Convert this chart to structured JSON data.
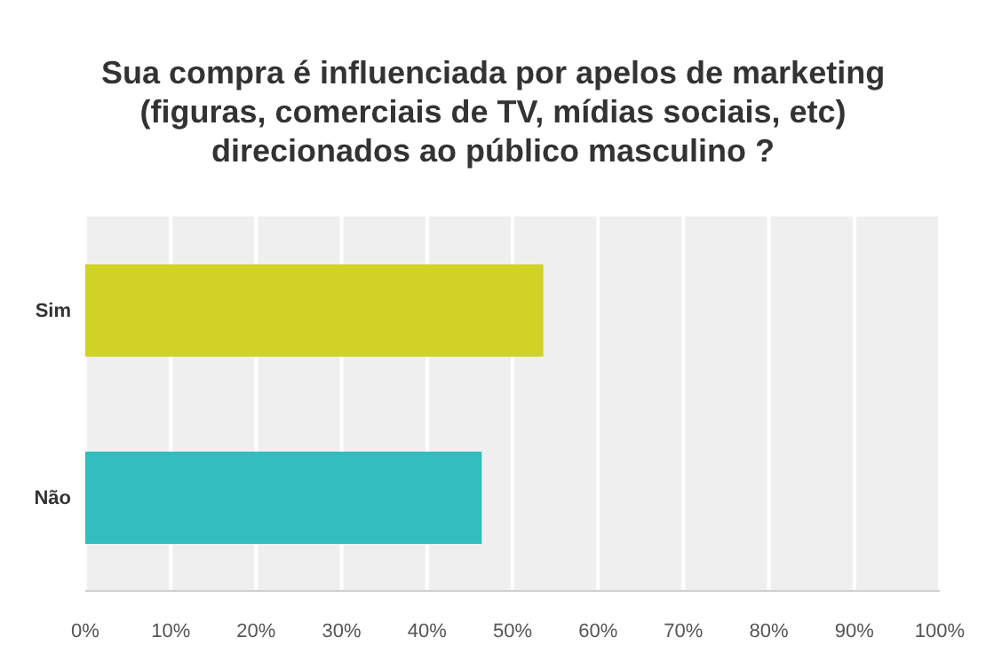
{
  "chart_data": {
    "type": "bar",
    "orientation": "horizontal",
    "title": "Sua compra é influenciada por apelos de marketing (figuras, comerciais de TV, mídias sociais, etc) direcionados ao público masculino ?",
    "categories": [
      "Sim",
      "Não"
    ],
    "values": [
      53.6,
      46.4
    ],
    "colors": [
      "#d0d326",
      "#33bdbf"
    ],
    "xlim": [
      0,
      100
    ],
    "xticks": [
      {
        "value": 0,
        "label": "0%"
      },
      {
        "value": 10,
        "label": "10%"
      },
      {
        "value": 20,
        "label": "20%"
      },
      {
        "value": 30,
        "label": "30%"
      },
      {
        "value": 40,
        "label": "40%"
      },
      {
        "value": 50,
        "label": "50%"
      },
      {
        "value": 60,
        "label": "60%"
      },
      {
        "value": 70,
        "label": "70%"
      },
      {
        "value": 80,
        "label": "80%"
      },
      {
        "value": 90,
        "label": "90%"
      },
      {
        "value": 100,
        "label": "100%"
      }
    ],
    "grid": "x",
    "legend": false
  }
}
